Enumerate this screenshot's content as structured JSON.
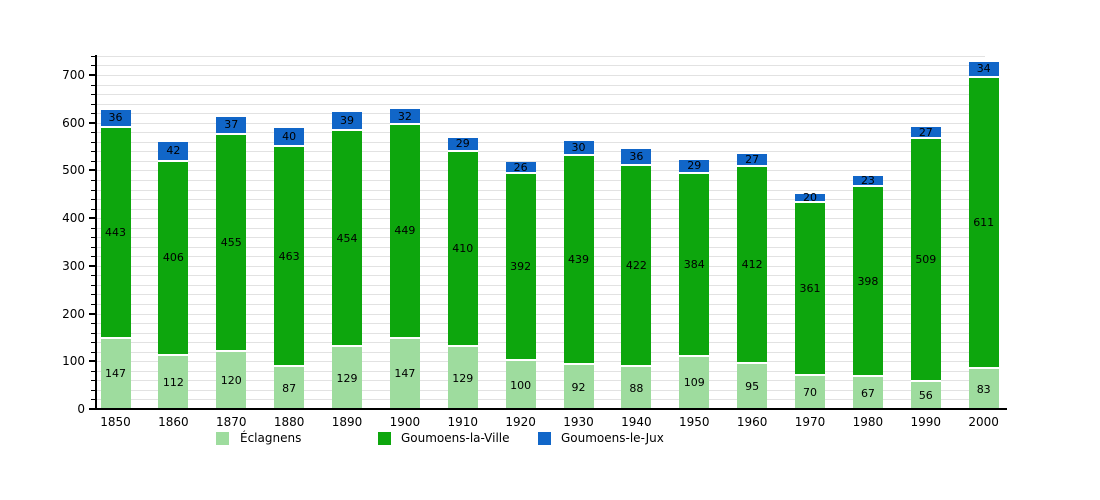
{
  "chart_data": {
    "type": "bar",
    "stacked": true,
    "title": "",
    "categories": [
      "1850",
      "1860",
      "1870",
      "1880",
      "1890",
      "1900",
      "1910",
      "1920",
      "1930",
      "1940",
      "1950",
      "1960",
      "1970",
      "1980",
      "1990",
      "2000"
    ],
    "series": [
      {
        "name": "Éclagnens",
        "color": "#9edc9e",
        "values": [
          147,
          112,
          120,
          87,
          129,
          147,
          129,
          100,
          92,
          88,
          109,
          95,
          70,
          67,
          56,
          83
        ]
      },
      {
        "name": "Goumoens-la-Ville",
        "color": "#0da60d",
        "values": [
          443,
          406,
          455,
          463,
          454,
          449,
          410,
          392,
          439,
          422,
          384,
          412,
          361,
          398,
          509,
          611
        ]
      },
      {
        "name": "Goumoens-le-Jux",
        "color": "#1166c8",
        "values": [
          36,
          42,
          37,
          40,
          39,
          32,
          29,
          26,
          30,
          36,
          29,
          27,
          20,
          23,
          27,
          34
        ]
      }
    ],
    "y_ticks": [
      0,
      100,
      200,
      300,
      400,
      500,
      600,
      700
    ],
    "ylim": [
      0,
      742
    ],
    "grid_step": 20,
    "grid": true,
    "legend_position": "bottom",
    "colors": {
      "background": "#ffffff",
      "gridline": "#e2e2e2",
      "axis": "#000000",
      "label_text": "#000000"
    }
  }
}
